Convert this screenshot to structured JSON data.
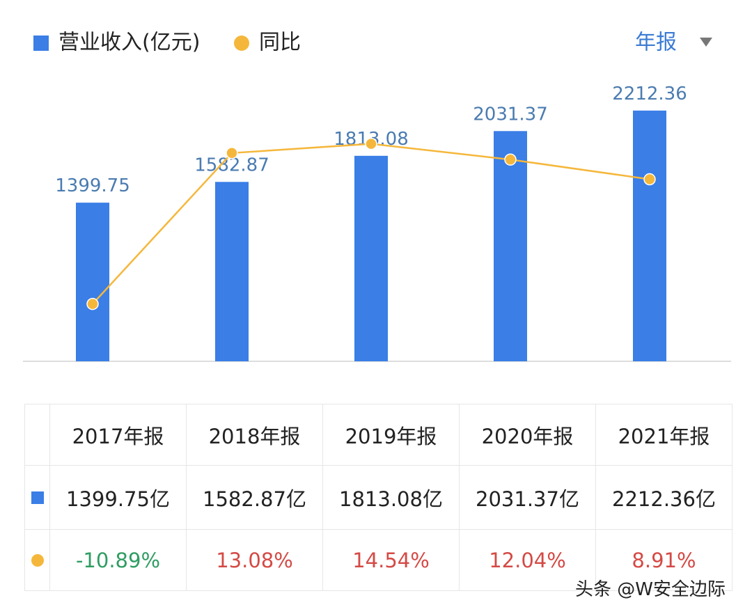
{
  "period_selector": "年报",
  "watermark": "头条 @W安全边际",
  "chart_data": {
    "type": "combo",
    "legend_position": "top-left",
    "categories": [
      "2017年报",
      "2018年报",
      "2019年报",
      "2020年报",
      "2021年报"
    ],
    "series": [
      {
        "name": "营业收入(亿元)",
        "type": "bar",
        "color": "#3a7ee6",
        "values": [
          1399.75,
          1582.87,
          1813.08,
          2031.37,
          2212.36
        ],
        "value_labels": [
          "1399.75亿",
          "1582.87亿",
          "1813.08亿",
          "2031.37亿",
          "2212.36亿"
        ]
      },
      {
        "name": "同比",
        "type": "line",
        "axis": "y2",
        "color": "#f5b73b",
        "values": [
          -10.89,
          13.08,
          14.54,
          12.04,
          8.91
        ],
        "value_labels": [
          "-10.89%",
          "13.08%",
          "14.54%",
          "12.04%",
          "8.91%"
        ]
      }
    ],
    "ylim": [
      0,
      2500
    ],
    "y2lim": [
      -20,
      25
    ],
    "positive_color": "#d44a45",
    "negative_color": "#2f9d62"
  }
}
